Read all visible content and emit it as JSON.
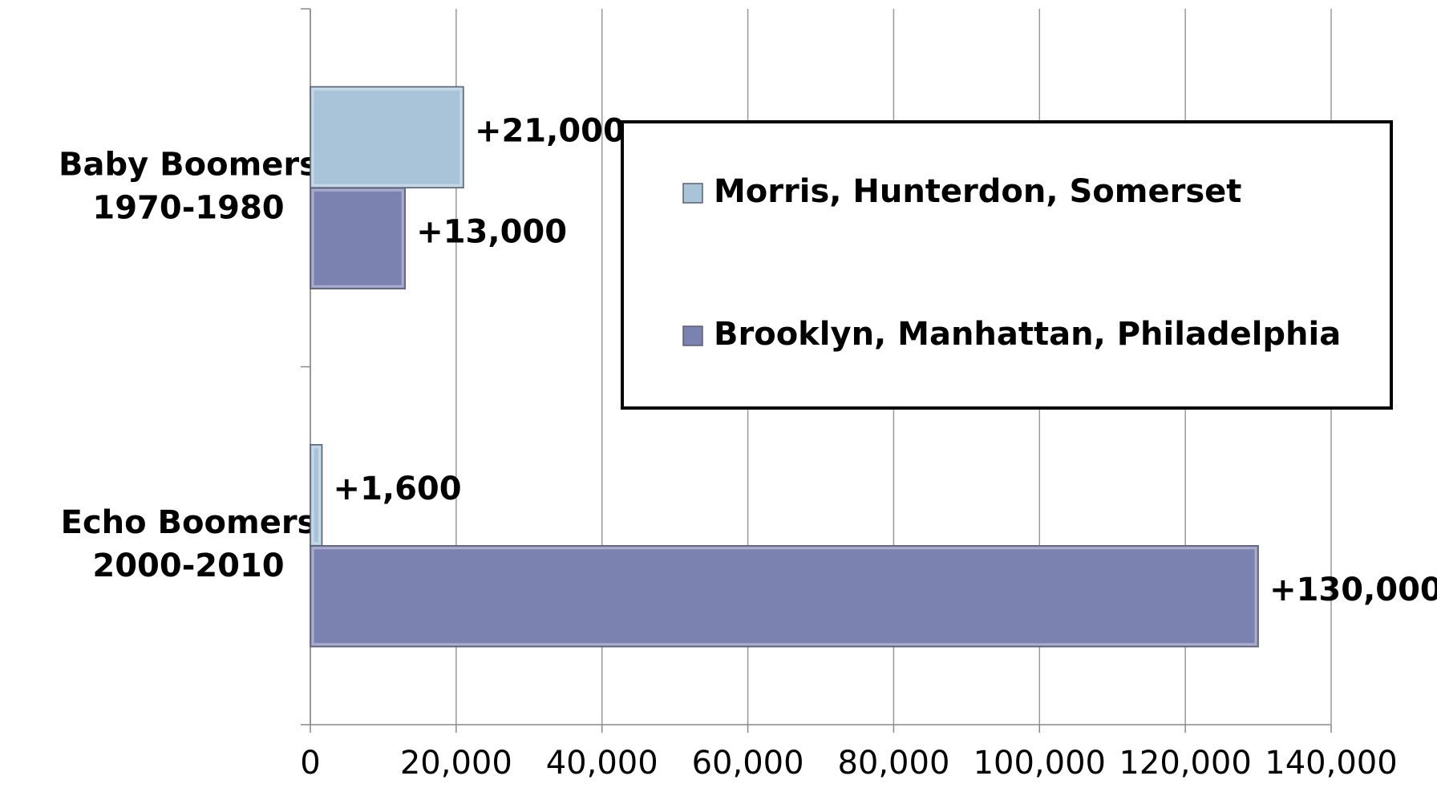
{
  "chart_data": {
    "type": "bar",
    "orientation": "horizontal",
    "categories": [
      "Baby Boomers\n1970-1980",
      "Echo Boomers\n2000-2010"
    ],
    "series": [
      {
        "name": "Morris, Hunterdon, Somerset",
        "color": "#a9c4d9",
        "values": [
          21000,
          1600
        ],
        "value_labels": [
          "+21,000",
          "+1,600"
        ]
      },
      {
        "name": "Brooklyn, Manhattan, Philadelphia",
        "color": "#7b82b0",
        "values": [
          13000,
          130000
        ],
        "value_labels": [
          "+13,000",
          "+130,000"
        ]
      }
    ],
    "xlim": [
      0,
      140000
    ],
    "xticks": [
      0,
      {
        "value": 20000,
        "label": "20,000"
      },
      {
        "value": 40000,
        "label": "40,000"
      },
      {
        "value": 60000,
        "label": "60,000"
      },
      {
        "value": 80000,
        "label": "80,000"
      },
      {
        "value": 100000,
        "label": "100,000"
      },
      {
        "value": 120000,
        "label": "120,000"
      },
      {
        "value": 140000,
        "label": "140,000"
      }
    ],
    "grid": true
  }
}
